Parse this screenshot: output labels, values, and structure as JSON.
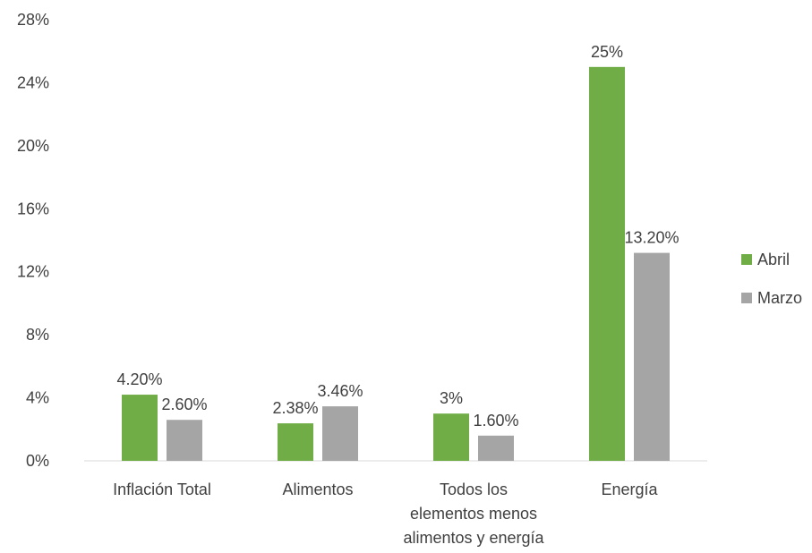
{
  "chart_data": {
    "type": "bar",
    "title": "",
    "xlabel": "",
    "ylabel": "",
    "ylim": [
      0,
      28
    ],
    "y_ticks": [
      "0%",
      "4%",
      "8%",
      "12%",
      "16%",
      "20%",
      "24%",
      "28%"
    ],
    "categories": [
      [
        "Inflación Total"
      ],
      [
        "Alimentos"
      ],
      [
        "Todos los",
        "elementos menos",
        "alimentos y energía"
      ],
      [
        "Energía"
      ]
    ],
    "series": [
      {
        "name": "Abril",
        "color": "#70AD47",
        "values": [
          4.2,
          2.38,
          3,
          25
        ],
        "labels": [
          "4.20%",
          "2.38%",
          "3%",
          "25%"
        ]
      },
      {
        "name": "Marzo",
        "color": "#A5A5A5",
        "values": [
          2.6,
          3.46,
          1.6,
          13.2
        ],
        "labels": [
          "2.60%",
          "3.46%",
          "1.60%",
          "13.20%"
        ]
      }
    ],
    "legend_position": "right",
    "grid": false
  }
}
